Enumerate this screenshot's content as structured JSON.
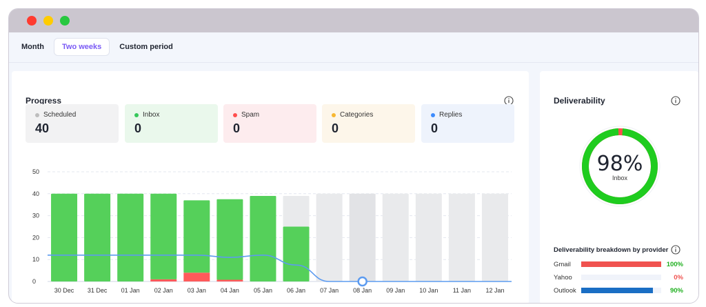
{
  "tabs": [
    {
      "label": "Month",
      "active": false
    },
    {
      "label": "Two weeks",
      "active": true
    },
    {
      "label": "Custom period",
      "active": false
    }
  ],
  "progress": {
    "title": "Progress",
    "stats": [
      {
        "label": "Scheduled",
        "value": "40",
        "dot": "#bdbdbd",
        "bg": "#f2f2f3"
      },
      {
        "label": "Inbox",
        "value": "0",
        "dot": "#35c85a",
        "bg": "#eaf8ec"
      },
      {
        "label": "Spam",
        "value": "0",
        "dot": "#ff4d4d",
        "bg": "#fdecee"
      },
      {
        "label": "Categories",
        "value": "0",
        "dot": "#f7b731",
        "bg": "#fdf6ea"
      },
      {
        "label": "Replies",
        "value": "0",
        "dot": "#3d8bfd",
        "bg": "#eef3fc"
      }
    ]
  },
  "chart_data": {
    "type": "bar",
    "categories": [
      "30 Dec",
      "31 Dec",
      "01 Jan",
      "02 Jan",
      "03 Jan",
      "04 Jan",
      "05 Jan",
      "06 Jan",
      "07 Jan",
      "08 Jan",
      "09 Jan",
      "10 Jan",
      "11 Jan",
      "12 Jan"
    ],
    "yticks": [
      0,
      10,
      20,
      30,
      40,
      50
    ],
    "ylim": [
      0,
      50
    ],
    "series": [
      {
        "color": "#55d05a",
        "values": [
          40,
          40,
          40,
          40,
          37,
          37.5,
          39,
          25,
          0,
          0,
          0,
          0,
          0,
          0
        ]
      },
      {
        "color": "#ff5a5a",
        "values": [
          0,
          0,
          0,
          1,
          4,
          0.8,
          0,
          0,
          0,
          0,
          0,
          0,
          0,
          0
        ]
      },
      {
        "color": "#e9eaec",
        "values": [
          0,
          0,
          0,
          0,
          0,
          0,
          0,
          14,
          40,
          40,
          40,
          40,
          40,
          40
        ]
      },
      {
        "type": "line",
        "color": "#5c9bf0",
        "values": [
          12,
          12,
          12,
          12,
          12,
          11,
          12,
          7.5,
          0,
          0,
          0,
          0,
          0,
          0
        ]
      }
    ],
    "highlight_category": "08 Jan",
    "grid": true
  },
  "deliverability": {
    "title": "Deliverability",
    "percent_label": "98%",
    "percent_value": 98,
    "sub_label": "Inbox",
    "ring_color": "#1fcc1f",
    "gap_color": "#ff4d4d",
    "breakdown_title": "Deliverability breakdown by provider",
    "providers": [
      {
        "name": "Gmail",
        "pct_label": "100%",
        "value": 100,
        "bar_color": "#f0524f",
        "pct_color": "#20b020"
      },
      {
        "name": "Yahoo",
        "pct_label": "0%",
        "value": 0,
        "bar_color": "#f0524f",
        "pct_color": "#f0524f"
      },
      {
        "name": "Outlook",
        "pct_label": "90%",
        "value": 90,
        "bar_color": "#1a6ec4",
        "pct_color": "#20b020"
      }
    ]
  }
}
